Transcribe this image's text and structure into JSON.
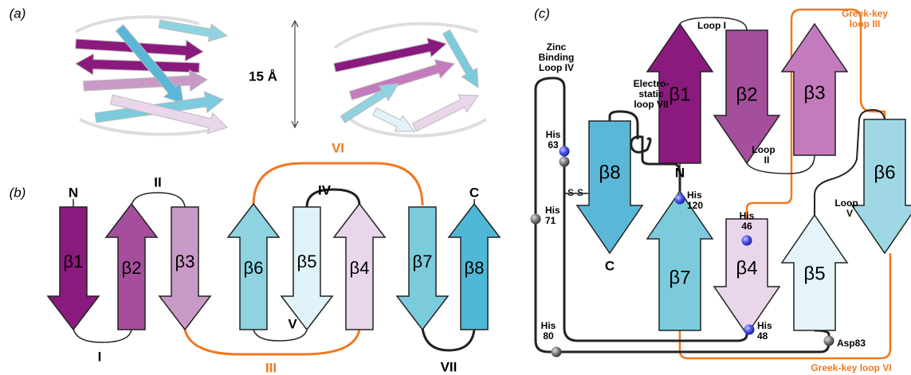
{
  "panel_a": {
    "label": "(a)",
    "scale": "15 Å"
  },
  "panel_b": {
    "label": "(b)",
    "strands": [
      "β1",
      "β2",
      "β3",
      "β6",
      "β5",
      "β4",
      "β7",
      "β8"
    ],
    "termini": [
      "N",
      "C"
    ],
    "loops": [
      "I",
      "II",
      "III",
      "IV",
      "V",
      "VI",
      "VII"
    ]
  },
  "panel_c": {
    "label": "(c)",
    "strands": [
      "β1",
      "β2",
      "β3",
      "β8",
      "β7",
      "β4",
      "β5",
      "β6"
    ],
    "termini": [
      "N",
      "C"
    ],
    "loops": [
      "Loop I",
      [
        "Loop",
        "II"
      ],
      [
        "Loop",
        "V"
      ],
      [
        "Zinc",
        "Binding",
        "Loop IV"
      ],
      [
        "Electro-",
        "static",
        "loop VII"
      ],
      [
        "Greek-key",
        "loop III"
      ],
      "Greek-key loop VI"
    ],
    "residues": [
      [
        "His",
        "63"
      ],
      [
        "His",
        "120"
      ],
      [
        "His",
        "71"
      ],
      [
        "His",
        "46"
      ],
      [
        "His",
        "80"
      ],
      [
        "His",
        "48"
      ],
      "Asp83"
    ],
    "disulfide": "-S-S-"
  }
}
